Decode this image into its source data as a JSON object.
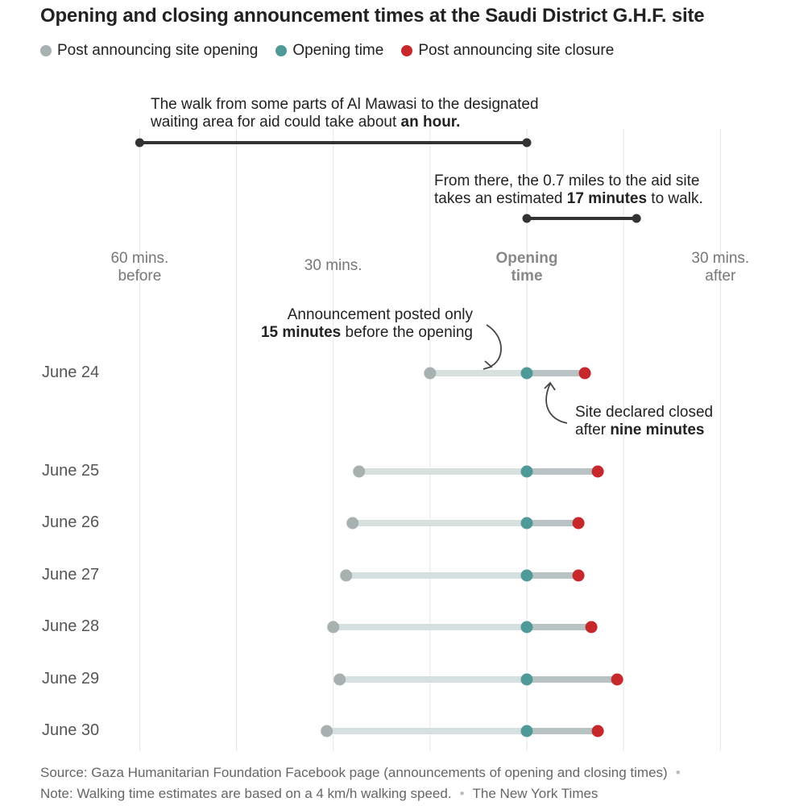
{
  "title": "Opening and closing announcement times at the Saudi District G.H.F. site",
  "legend": [
    {
      "label": "Post announcing site opening",
      "color": "#a6b1b0"
    },
    {
      "label": "Opening time",
      "color": "#4f9a98"
    },
    {
      "label": "Post announcing site closure",
      "color": "#c6282b"
    }
  ],
  "annotations": {
    "walk_line1": "The walk from some parts of Al Mawasi to the designated",
    "walk_line2_pre": "waiting area for aid could take about ",
    "walk_line2_bold": "an hour.",
    "walk_from": -60,
    "walk_to": 0,
    "site_line1": "From there, the 0.7 miles to the aid site",
    "site_line2_pre": "takes an estimated ",
    "site_line2_bold": "17 minutes",
    "site_line2_post": " to walk.",
    "site_from": 0,
    "site_to": 17,
    "posted_line1": "Announcement posted only",
    "posted_line2_bold": "15 minutes",
    "posted_line2_post": " before the opening",
    "closed_line1": "Site declared closed",
    "closed_line2_pre": "after ",
    "closed_line2_bold": "nine minutes"
  },
  "axis_labels": [
    {
      "line1": "60 mins.",
      "line2": "before",
      "value": -60,
      "bold": false
    },
    {
      "line1": "30 mins.",
      "line2": "",
      "value": -30,
      "bold": false
    },
    {
      "line1": "Opening",
      "line2": "time",
      "value": 0,
      "bold": true
    },
    {
      "line1": "30 mins.",
      "line2": "after",
      "value": 30,
      "bold": false
    }
  ],
  "chart_data": {
    "type": "dumbbell",
    "x_unit": "minutes relative to opening time",
    "xlim": [
      -60,
      30
    ],
    "gridlines": [
      -60,
      -45,
      -30,
      -15,
      0,
      15,
      30
    ],
    "categories": [
      "June 24",
      "June 25",
      "June 26",
      "June 27",
      "June 28",
      "June 29",
      "June 30"
    ],
    "series": [
      {
        "name": "Post announcing site opening",
        "values": [
          -15,
          -26,
          -27,
          -28,
          -30,
          -29,
          -31
        ]
      },
      {
        "name": "Opening time",
        "values": [
          0,
          0,
          0,
          0,
          0,
          0,
          0
        ]
      },
      {
        "name": "Post announcing site closure",
        "values": [
          9,
          11,
          8,
          8,
          10,
          14,
          11
        ]
      }
    ]
  },
  "footer": {
    "source": "Source: Gaza Humanitarian Foundation Facebook page (announcements of opening and closing times)",
    "note": "Note: Walking time estimates are based on a 4 km/h walking speed.",
    "credit": "The New York Times"
  }
}
